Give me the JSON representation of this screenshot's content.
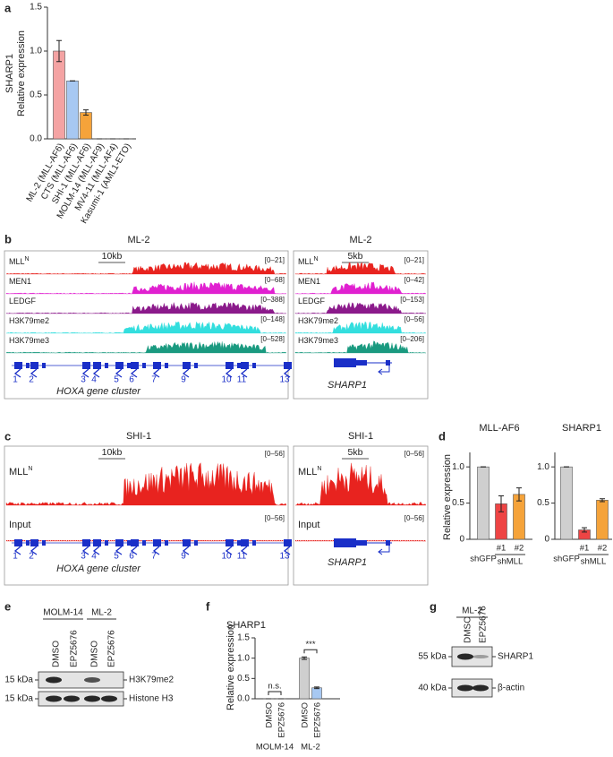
{
  "panel_labels": [
    "a",
    "b",
    "c",
    "d",
    "e",
    "f",
    "g"
  ],
  "chart_data": [
    {
      "type": "bar",
      "ylabel": [
        "SHARP1",
        "Relative expression"
      ],
      "categories": [
        "ML-2 (MLL-AF6)",
        "CTS (MLL-AF6)",
        "SHI-1 (MLL-AF6)",
        "MOLM-14 (MLL-AF9)",
        "MV4-11 (MLL-AF4)",
        "Kasumi-1 (AML1-ETO)"
      ],
      "values": [
        1.0,
        0.66,
        0.3,
        0,
        0,
        0
      ],
      "errors": [
        0.12,
        0,
        0.03,
        0,
        0,
        0
      ],
      "colors": [
        "#f4a3a3",
        "#a7c8f2",
        "#f5a33a",
        "#888888",
        "#888888",
        "#888888"
      ],
      "ylim": [
        0,
        1.5
      ],
      "yticks": [
        {
          "value": 0,
          "label": "0.0"
        },
        {
          "value": 0.5,
          "label": "0.5"
        },
        {
          "value": 1.0,
          "label": "1.0"
        },
        {
          "value": 1.5,
          "label": "1.5"
        }
      ]
    },
    {
      "type": "bar",
      "title": "MLL-AF6",
      "ylabel": "Relative expression",
      "categories": [
        "shGFP",
        "#1",
        "#2"
      ],
      "group_label": "shMLL",
      "values": [
        1,
        0.49,
        0.62
      ],
      "errors": [
        0,
        0.11,
        0.09
      ],
      "colors": [
        "#cfcfcf",
        "#ee4444",
        "#f5a33a"
      ],
      "ylim": [
        0,
        1.2
      ],
      "yticks": [
        0,
        0.5,
        {
          "value": 1,
          "label": "1.0"
        }
      ]
    },
    {
      "type": "bar",
      "title": "SHARP1",
      "categories": [
        "shGFP",
        "#1",
        "#2"
      ],
      "group_label": "shMLL",
      "values": [
        1,
        0.13,
        0.54
      ],
      "errors": [
        0,
        0.03,
        0.02
      ],
      "colors": [
        "#cfcfcf",
        "#ee4444",
        "#f5a33a"
      ],
      "ylim": [
        0,
        1.2
      ],
      "yticks": [
        0,
        0.5,
        {
          "value": 1,
          "label": "1.0"
        }
      ]
    },
    {
      "type": "bar",
      "title": "SHARP1",
      "ylabel": "Relative expression",
      "categories": [
        "DMSO",
        "EPZ5676",
        "DMSO",
        "EPZ5676"
      ],
      "groups": [
        "MOLM-14",
        "ML-2"
      ],
      "values": [
        0,
        0,
        1.0,
        0.27
      ],
      "errors": [
        0,
        0,
        0.03,
        0.02
      ],
      "colors": [
        "#cfcfcf",
        "#a7c8f2",
        "#cfcfcf",
        "#a7c8f2"
      ],
      "annotations": [
        "n.s.",
        "***"
      ],
      "ylim": [
        0,
        1.5
      ],
      "yticks": [
        {
          "value": 0,
          "label": "0.0"
        },
        {
          "value": 0.5,
          "label": "0.5"
        },
        {
          "value": 1.0,
          "label": "1.0"
        },
        {
          "value": 1.5,
          "label": "1.5"
        }
      ]
    }
  ],
  "tracks": [
    {
      "title": "ML-2",
      "scale": "10kb",
      "gene_caption": "HOXA gene cluster",
      "gene_numbers": [
        "1",
        "2",
        "3",
        "4",
        "5",
        "6",
        "7",
        "9",
        "10",
        "11",
        "13"
      ],
      "rows": [
        {
          "name": "MLL",
          "sup": "N",
          "range": "[0–21]",
          "color": "#e8231f"
        },
        {
          "name": "MEN1",
          "range": "[0–68]",
          "color": "#e020d0"
        },
        {
          "name": "LEDGF",
          "range": "[0–388]",
          "color": "#8b1a8b"
        },
        {
          "name": "H3K79me2",
          "range": "[0–148]",
          "color": "#33dede"
        },
        {
          "name": "H3K79me3",
          "range": "[0–528]",
          "color": "#1a9a80"
        }
      ]
    },
    {
      "title": "ML-2",
      "scale": "5kb",
      "gene_caption": "SHARP1",
      "rows": [
        {
          "name": "MLL",
          "sup": "N",
          "range": "[0–21]",
          "color": "#e8231f"
        },
        {
          "name": "MEN1",
          "range": "[0–42]",
          "color": "#e020d0"
        },
        {
          "name": "LEDGF",
          "range": "[0–153]",
          "color": "#8b1a8b"
        },
        {
          "name": "H3K79me2",
          "range": "[0–56]",
          "color": "#33dede"
        },
        {
          "name": "H3K79me3",
          "range": "[0–206]",
          "color": "#1a9a80"
        }
      ]
    },
    {
      "title": "SHI-1",
      "scale": "10kb",
      "gene_caption": "HOXA gene cluster",
      "gene_numbers": [
        "1",
        "2",
        "3",
        "4",
        "5",
        "6",
        "7",
        "9",
        "10",
        "11",
        "13"
      ],
      "rows": [
        {
          "name": "MLL",
          "sup": "N",
          "range": "[0–56]",
          "color": "#e8231f"
        },
        {
          "name": "Input",
          "range": "[0–56]",
          "color": "#e8231f"
        }
      ]
    },
    {
      "title": "SHI-1",
      "scale": "5kb",
      "gene_caption": "SHARP1",
      "rows": [
        {
          "name": "MLL",
          "sup": "N",
          "range": "[0–56]",
          "color": "#e8231f"
        },
        {
          "name": "Input",
          "range": "[0–56]",
          "color": "#e8231f"
        }
      ]
    }
  ],
  "blots": [
    {
      "groups": [
        "MOLM-14",
        "ML-2"
      ],
      "lanes": [
        "DMSO",
        "EPZ5676",
        "DMSO",
        "EPZ5676"
      ],
      "markers": [
        "15 kDa",
        "15 kDa"
      ],
      "bands": [
        "H3K79me2",
        "Histone H3"
      ]
    },
    {
      "groups": [
        "ML-2"
      ],
      "lanes": [
        "DMSO",
        "EPZ5676"
      ],
      "markers": [
        "55 kDa",
        "40 kDa"
      ],
      "bands": [
        "SHARP1",
        "β-actin"
      ]
    }
  ]
}
